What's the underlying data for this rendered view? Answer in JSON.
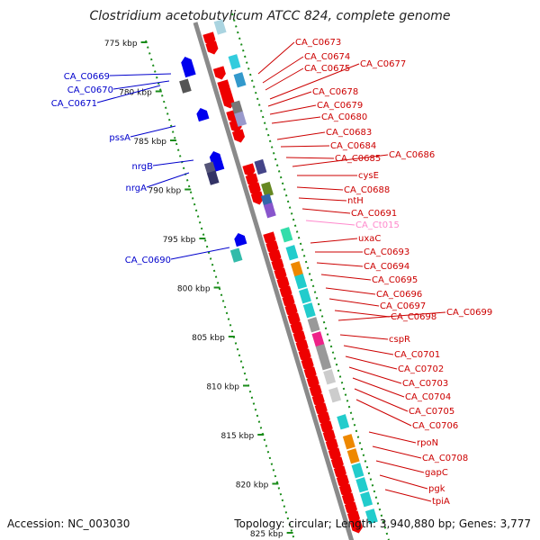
{
  "title": "Clostridium acetobutylicum ATCC 824, complete genome",
  "footer": {
    "accession": "Accession: NC_003030",
    "summary": "Topology: circular; Length: 3,940,880 bp; Genes: 3,777"
  },
  "colors": {
    "backbone": "#8a8a8a",
    "forward_label": "#0000cc",
    "reverse_label": "#cc0000",
    "rna_label": "#ff88cc",
    "tick": "#1a8c1a"
  },
  "ticks": [
    "775 kbp",
    "780 kbp",
    "785 kbp",
    "790 kbp",
    "795 kbp",
    "800 kbp",
    "805 kbp",
    "810 kbp",
    "815 kbp",
    "820 kbp",
    "825 kbp"
  ],
  "left_genes": [
    "CA_C0669",
    "CA_C0670",
    "CA_C0671",
    "pssA",
    "nrgB",
    "nrgA",
    "CA_C0690"
  ],
  "right_genes": [
    "CA_C0673",
    "CA_C0674",
    "CA_C0675",
    "CA_C0677",
    "CA_C0678",
    "CA_C0679",
    "CA_C0680",
    "CA_C0683",
    "CA_C0684",
    "CA_C0685",
    "CA_C0686",
    "cysE",
    "CA_C0688",
    "ntH",
    "CA_C0691",
    "CA_Ct015",
    "uxaC",
    "CA_C0693",
    "CA_C0694",
    "CA_C0695",
    "CA_C0696",
    "CA_C0697",
    "CA_C0698",
    "CA_C0699",
    "cspR",
    "CA_C0701",
    "CA_C0702",
    "CA_C0703",
    "CA_C0704",
    "CA_C0705",
    "CA_C0706",
    "rpoN",
    "CA_C0708",
    "gapC",
    "pgk",
    "tpiA"
  ]
}
